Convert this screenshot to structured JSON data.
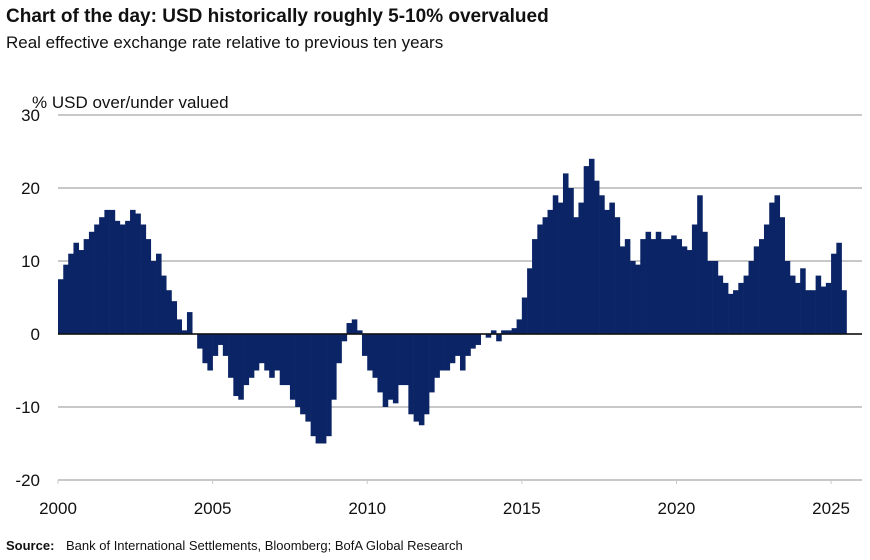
{
  "chart_data": {
    "type": "bar",
    "title": "Chart of the day: USD historically roughly 5-10% overvalued",
    "subtitle": "Real effective exchange rate relative to previous ten years",
    "y_label": "% USD over/under valued",
    "source_label": "Source:",
    "source": "Bank of International Settlements, Bloomberg; BofA Global Research",
    "color": "#0b2466",
    "grid": true,
    "xlim": [
      2000,
      2026
    ],
    "xticks": [
      2000,
      2005,
      2010,
      2015,
      2020,
      2025
    ],
    "ylim": [
      -20,
      30
    ],
    "yticks": [
      30,
      20,
      10,
      0,
      -10,
      -20
    ],
    "x": [
      2000.0,
      2000.17,
      2000.33,
      2000.5,
      2000.67,
      2000.83,
      2001.0,
      2001.17,
      2001.33,
      2001.5,
      2001.67,
      2001.83,
      2002.0,
      2002.17,
      2002.33,
      2002.5,
      2002.67,
      2002.83,
      2003.0,
      2003.17,
      2003.33,
      2003.5,
      2003.67,
      2003.83,
      2004.0,
      2004.17,
      2004.33,
      2004.5,
      2004.67,
      2004.83,
      2005.0,
      2005.17,
      2005.33,
      2005.5,
      2005.67,
      2005.83,
      2006.0,
      2006.17,
      2006.33,
      2006.5,
      2006.67,
      2006.83,
      2007.0,
      2007.17,
      2007.33,
      2007.5,
      2007.67,
      2007.83,
      2008.0,
      2008.17,
      2008.33,
      2008.5,
      2008.67,
      2008.83,
      2009.0,
      2009.17,
      2009.33,
      2009.5,
      2009.67,
      2009.83,
      2010.0,
      2010.17,
      2010.33,
      2010.5,
      2010.67,
      2010.83,
      2011.0,
      2011.17,
      2011.33,
      2011.5,
      2011.67,
      2011.83,
      2012.0,
      2012.17,
      2012.33,
      2012.5,
      2012.67,
      2012.83,
      2013.0,
      2013.17,
      2013.33,
      2013.5,
      2013.67,
      2013.83,
      2014.0,
      2014.17,
      2014.33,
      2014.5,
      2014.67,
      2014.83,
      2015.0,
      2015.17,
      2015.33,
      2015.5,
      2015.67,
      2015.83,
      2016.0,
      2016.17,
      2016.33,
      2016.5,
      2016.67,
      2016.83,
      2017.0,
      2017.17,
      2017.33,
      2017.5,
      2017.67,
      2017.83,
      2018.0,
      2018.17,
      2018.33,
      2018.5,
      2018.67,
      2018.83,
      2019.0,
      2019.17,
      2019.33,
      2019.5,
      2019.67,
      2019.83,
      2020.0,
      2020.17,
      2020.33,
      2020.5,
      2020.67,
      2020.83,
      2021.0,
      2021.17,
      2021.33,
      2021.5,
      2021.67,
      2021.83,
      2022.0,
      2022.17,
      2022.33,
      2022.5,
      2022.67,
      2022.83,
      2023.0,
      2023.17,
      2023.33,
      2023.5,
      2023.67,
      2023.83,
      2024.0,
      2024.17,
      2024.33,
      2024.5,
      2024.67,
      2024.83,
      2025.0,
      2025.17,
      2025.33
    ],
    "values": [
      7.5,
      9.5,
      11,
      12.5,
      11.5,
      13,
      14,
      15,
      16,
      17,
      17,
      15.5,
      15,
      15.5,
      17,
      16.5,
      15,
      13,
      10,
      11,
      8,
      6,
      4.5,
      2,
      0.5,
      3,
      0,
      -2,
      -4,
      -5,
      -3,
      -1.5,
      -3,
      -6,
      -8.5,
      -9,
      -7,
      -6,
      -5,
      -4,
      -5,
      -6,
      -5,
      -7,
      -7,
      -9,
      -10,
      -11,
      -12,
      -14,
      -15,
      -15,
      -14,
      -9,
      -4,
      -1,
      1.5,
      2,
      0.5,
      -3,
      -5,
      -6,
      -8,
      -10,
      -9,
      -9.5,
      -7,
      -7,
      -11,
      -12,
      -12.5,
      -11,
      -8,
      -6,
      -5,
      -5,
      -4,
      -3,
      -5,
      -3,
      -2,
      -1.5,
      0,
      -0.5,
      0.5,
      -1,
      0.5,
      0.5,
      0.8,
      2,
      5,
      9,
      13,
      15,
      16,
      17,
      19,
      18,
      22,
      20,
      16,
      18,
      23,
      24,
      21,
      19,
      17,
      18,
      16,
      12,
      13,
      10,
      9.5,
      13,
      14,
      13,
      14,
      13,
      13,
      13.5,
      13,
      12,
      11.5,
      15,
      19,
      14,
      10,
      10,
      8,
      7,
      5.5,
      6,
      7,
      8,
      10,
      12,
      13,
      15,
      18,
      19,
      16,
      10,
      8,
      7,
      9,
      6,
      6,
      8,
      6.5,
      7,
      11,
      12.5,
      6
    ]
  }
}
